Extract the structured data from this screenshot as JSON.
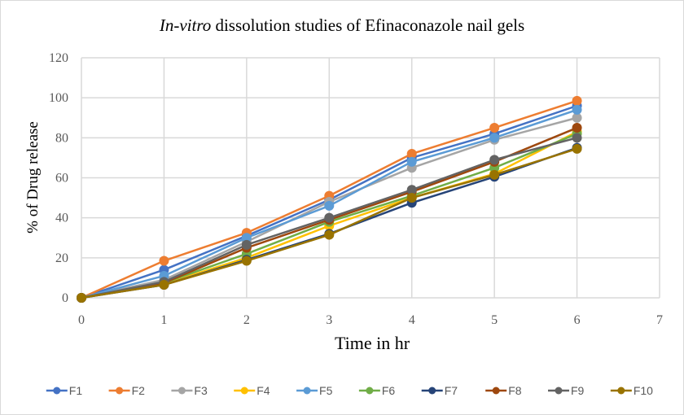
{
  "chart_data": {
    "type": "line",
    "title_italic": "In-vitro",
    "title_rest": " dissolution studies of Efinaconazole nail gels",
    "xlabel": "Time in hr",
    "ylabel": "% of Drug release",
    "xlim": [
      0,
      7
    ],
    "ylim": [
      0,
      120
    ],
    "xticks": [
      "0",
      "1",
      "2",
      "3",
      "4",
      "5",
      "6",
      "7"
    ],
    "yticks": [
      "0",
      "20",
      "40",
      "60",
      "80",
      "100",
      "120"
    ],
    "grid": true,
    "legend_position": "bottom",
    "x": [
      0,
      1,
      2,
      3,
      4,
      5,
      6
    ],
    "series": [
      {
        "name": "F1",
        "color": "#4472C4",
        "values": [
          0,
          14,
          31,
          49,
          70,
          82,
          96
        ]
      },
      {
        "name": "F2",
        "color": "#ED7D31",
        "values": [
          0,
          18.5,
          32.5,
          51,
          72,
          85,
          98.5
        ]
      },
      {
        "name": "F3",
        "color": "#A5A5A5",
        "values": [
          0,
          9,
          28,
          48,
          65,
          79,
          90
        ]
      },
      {
        "name": "F4",
        "color": "#FFC000",
        "values": [
          0,
          7,
          20,
          36,
          50,
          62,
          83
        ]
      },
      {
        "name": "F5",
        "color": "#5B9BD5",
        "values": [
          0,
          11,
          30,
          46,
          68,
          80,
          94
        ]
      },
      {
        "name": "F6",
        "color": "#70AD47",
        "values": [
          0,
          7.5,
          22,
          38,
          51,
          65,
          82
        ]
      },
      {
        "name": "F7",
        "color": "#264478",
        "values": [
          0,
          6.5,
          19,
          32,
          47.5,
          60.5,
          75
        ]
      },
      {
        "name": "F8",
        "color": "#9E480E",
        "values": [
          0,
          7.5,
          25,
          39,
          53,
          68,
          85
        ]
      },
      {
        "name": "F9",
        "color": "#636363",
        "values": [
          0,
          8,
          26.5,
          40,
          54,
          69,
          80
        ]
      },
      {
        "name": "F10",
        "color": "#997300",
        "values": [
          0,
          6.5,
          18.5,
          31.5,
          50,
          61.5,
          74.5
        ]
      }
    ]
  }
}
